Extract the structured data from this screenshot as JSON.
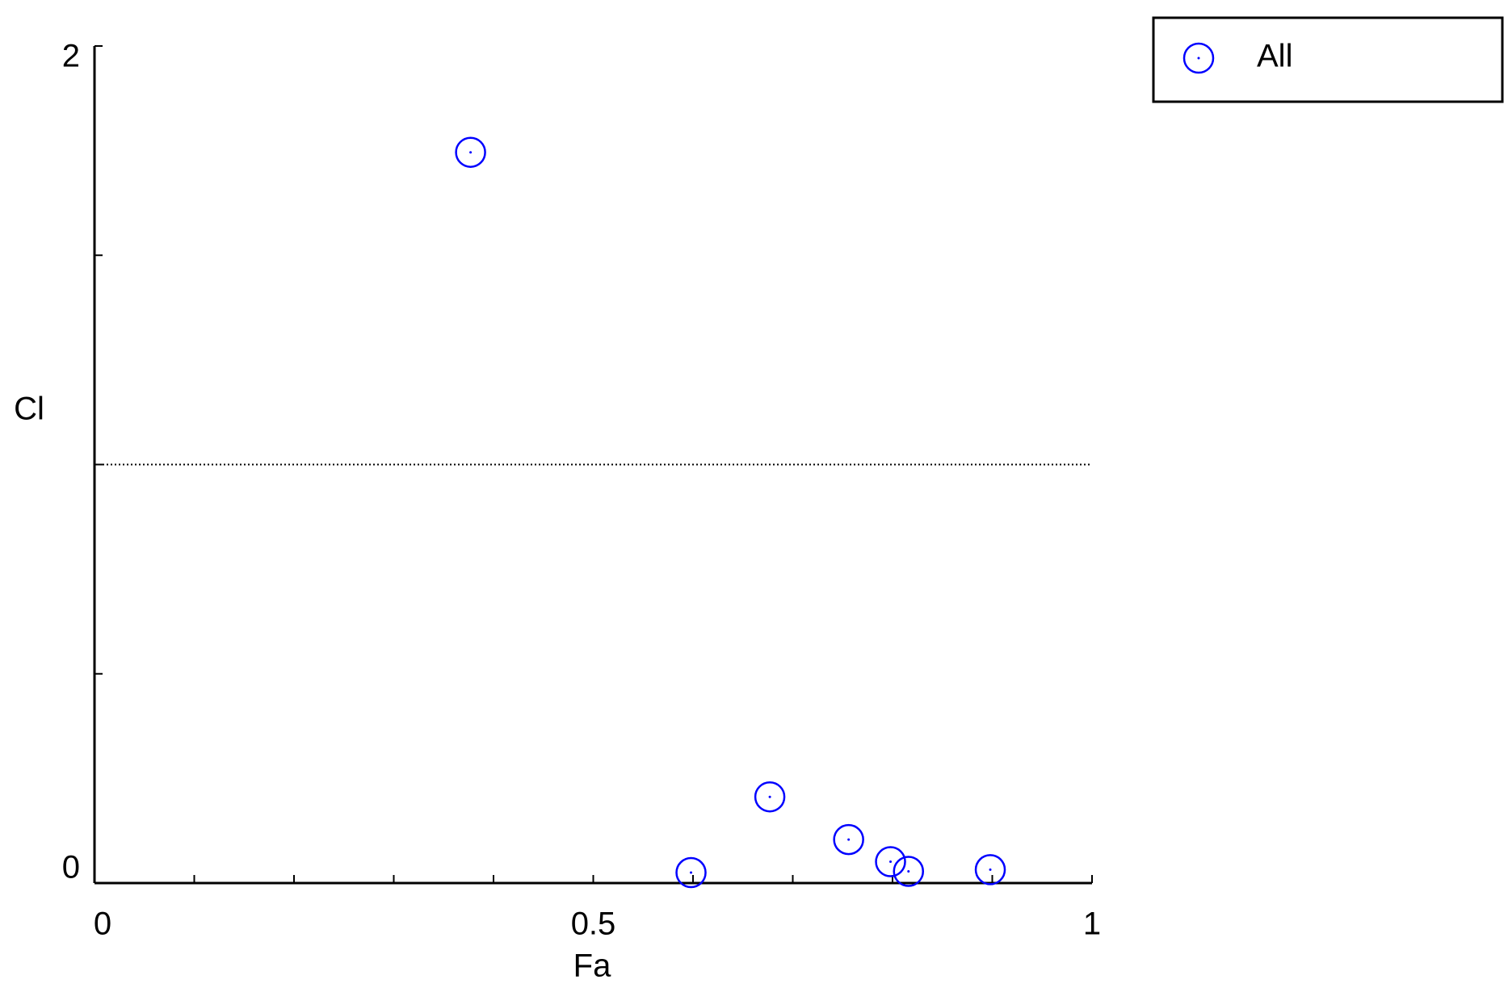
{
  "chart_data": {
    "type": "scatter",
    "xlabel": "Fa",
    "ylabel": "Cl",
    "series": [
      {
        "name": "All",
        "color": "#0000ff",
        "x": [
          0.377,
          0.598,
          0.677,
          0.756,
          0.798,
          0.816,
          0.898
        ],
        "values": [
          1.746,
          0.025,
          0.206,
          0.104,
          0.051,
          0.028,
          0.032
        ]
      }
    ],
    "xlim": [
      0,
      1
    ],
    "ylim": [
      0,
      2
    ],
    "xticks": [
      0,
      0.5,
      1
    ],
    "yticks": [
      0,
      2
    ],
    "xminorticks": [
      0.1,
      0.2,
      0.3,
      0.4,
      0.6,
      0.7,
      0.8,
      0.9
    ],
    "yminorticks": [
      0.5,
      1,
      1.5
    ],
    "hline": 1,
    "legend": "upper right"
  }
}
